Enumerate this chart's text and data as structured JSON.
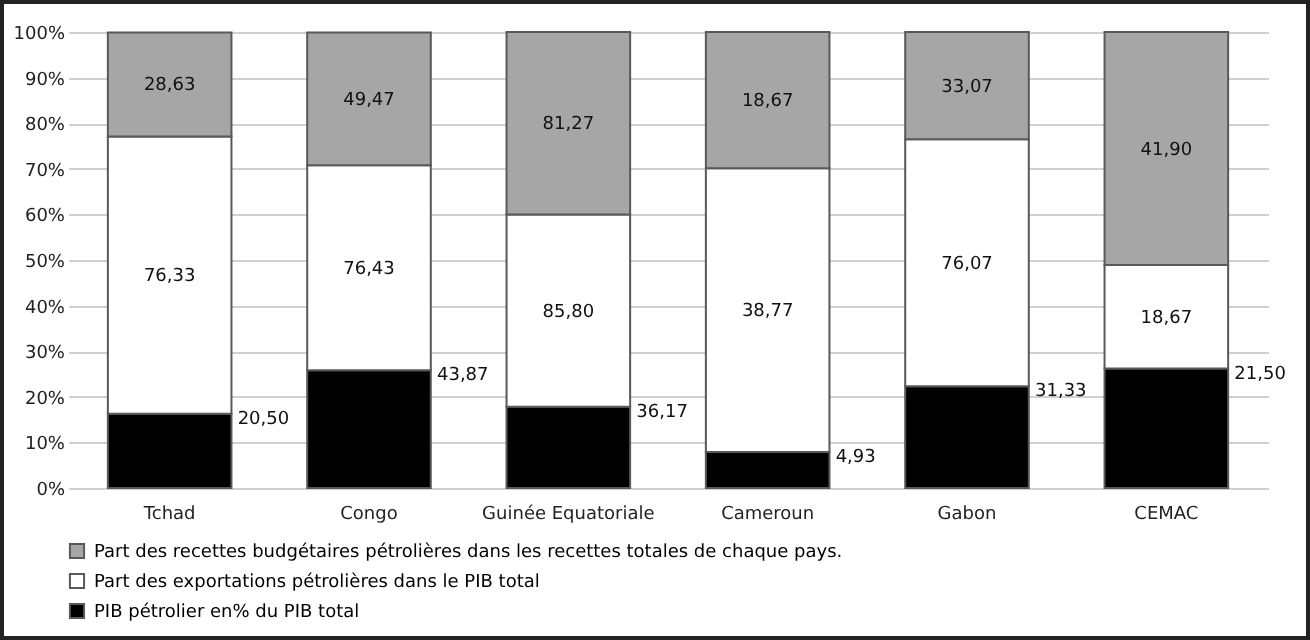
{
  "chart_data": {
    "type": "bar",
    "stacked": true,
    "categories": [
      "Tchad",
      "Congo",
      "Guinée Equatoriale",
      "Cameroun",
      "Gabon",
      "CEMAC"
    ],
    "series": [
      {
        "name": "PIB pétrolier en% du PIB total",
        "color": "#000000",
        "values": [
          16.3,
          25.8,
          17.8,
          7.9,
          22.3,
          26.2
        ]
      },
      {
        "name": "Part des exportations pétrolières dans le PIB total",
        "color": "#ffffff",
        "values": [
          60.8,
          45.0,
          42.2,
          62.2,
          54.2,
          22.7
        ]
      },
      {
        "name": "Part des recettes budgétaires pétrolières dans les recettes totales de chaque pays.",
        "color": "#a6a6a6",
        "values": [
          22.8,
          29.1,
          40.0,
          29.9,
          23.5,
          51.1
        ]
      }
    ],
    "annotations": [
      "20,50",
      "76,33",
      "28,63",
      "43,87",
      "76,43",
      "49,47",
      "36,17",
      "85,80",
      "81,27",
      "4,93",
      "38,77",
      "18,67",
      "31,33",
      "76,07",
      "33,07",
      "21,50",
      "18,67",
      "41,90"
    ],
    "ylim": [
      0,
      100
    ],
    "yticks": [
      {
        "value": 0,
        "label": "0%"
      },
      {
        "value": 10,
        "label": "10%"
      },
      {
        "value": 20,
        "label": "20%"
      },
      {
        "value": 30,
        "label": "30%"
      },
      {
        "value": 40,
        "label": "40%"
      },
      {
        "value": 50,
        "label": "50%"
      },
      {
        "value": 60,
        "label": "60%"
      },
      {
        "value": 70,
        "label": "70%"
      },
      {
        "value": 80,
        "label": "80%"
      },
      {
        "value": 90,
        "label": "90%"
      },
      {
        "value": 100,
        "label": "100%"
      }
    ],
    "grid": "y",
    "legend": "bottom"
  }
}
